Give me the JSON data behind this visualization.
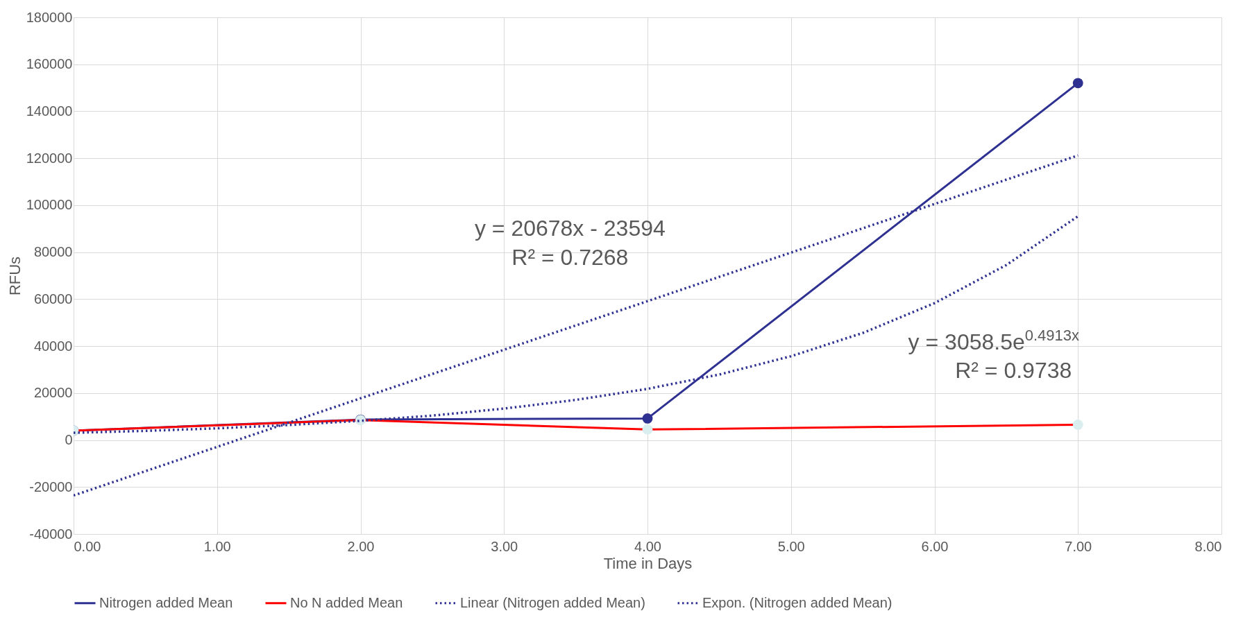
{
  "chart_data": {
    "type": "line",
    "xlabel": "Time in Days",
    "ylabel": "RFUs",
    "xlim": [
      0,
      8
    ],
    "ylim": [
      -40000,
      180000
    ],
    "xticks": [
      {
        "value": 0,
        "label": "0.00"
      },
      {
        "value": 1,
        "label": "1.00"
      },
      {
        "value": 2,
        "label": "2.00"
      },
      {
        "value": 3,
        "label": "3.00"
      },
      {
        "value": 4,
        "label": "4.00"
      },
      {
        "value": 5,
        "label": "5.00"
      },
      {
        "value": 6,
        "label": "6.00"
      },
      {
        "value": 7,
        "label": "7.00"
      },
      {
        "value": 8,
        "label": "8.00"
      }
    ],
    "yticks": [
      -40000,
      -20000,
      0,
      20000,
      40000,
      60000,
      80000,
      100000,
      120000,
      140000,
      160000,
      180000
    ],
    "grid": true,
    "legend": "bottom",
    "marker": "circle",
    "line_style": "solid",
    "series": [
      {
        "name": "Nitrogen added Mean",
        "color": "#2e3192",
        "x": [
          0,
          2,
          4,
          7
        ],
        "values": [
          4000,
          8700,
          9200,
          152000
        ]
      },
      {
        "name": "No N added Mean",
        "color": "#ff0000",
        "x": [
          0,
          2,
          4,
          7
        ],
        "values": [
          4000,
          8500,
          4500,
          6500
        ]
      },
      {
        "name": "Linear (Nitrogen added Mean)",
        "color": "#2e3192",
        "type": "line",
        "line_style": "dotted",
        "marker": "none",
        "x": [
          0,
          7
        ],
        "values": [
          -23600,
          121200
        ]
      },
      {
        "name": "Expon. (Nitrogen added Mean)",
        "color": "#2e3192",
        "type": "line",
        "line_style": "dotted",
        "marker": "none",
        "x": [
          0,
          0.5,
          1,
          1.5,
          2,
          2.5,
          3,
          3.5,
          4,
          4.5,
          5,
          5.5,
          6,
          6.5,
          7
        ],
        "values": [
          3100,
          3900,
          5000,
          6400,
          8200,
          10400,
          13400,
          17100,
          21800,
          27900,
          35700,
          45600,
          58300,
          74500,
          95300
        ]
      }
    ],
    "annotations": [
      "y = 20678x - 23594",
      "R² = 0.7268",
      "y = 3058.5e$^{0.4913x}$",
      "R² = 0.9738"
    ]
  }
}
